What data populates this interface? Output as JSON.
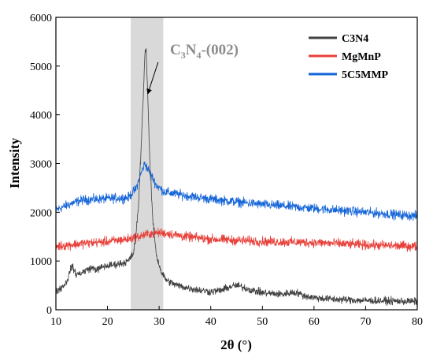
{
  "chart_data": {
    "type": "line",
    "xlabel": "2θ (°)",
    "ylabel": "Intensity",
    "xlim": [
      10,
      80
    ],
    "ylim": [
      0,
      6000
    ],
    "x_ticks": [
      10,
      20,
      30,
      40,
      50,
      60,
      70,
      80
    ],
    "y_ticks": [
      0,
      1000,
      2000,
      3000,
      4000,
      5000,
      6000
    ],
    "grid": false,
    "legend_position": "top-right",
    "shaded_band": {
      "x_range": [
        24.5,
        30.8
      ],
      "color": "#d9d9d9"
    },
    "annotation": {
      "text_parts": [
        "C",
        "3",
        "N",
        "4",
        "-(002)"
      ],
      "arrow_from": [
        29.8,
        5080
      ],
      "arrow_to": [
        27.8,
        4430
      ]
    },
    "series": [
      {
        "name": "C3N4",
        "color": "#404040",
        "noise": 55,
        "x": [
          10,
          11,
          12,
          12.5,
          13,
          13.5,
          14,
          15,
          16,
          17,
          18,
          19,
          20,
          21,
          22,
          23,
          24,
          25,
          25.5,
          26,
          26.5,
          27,
          27.3,
          27.5,
          27.8,
          28.2,
          28.8,
          29.5,
          30.5,
          31.5,
          33,
          35,
          38,
          40,
          42,
          44,
          45,
          46,
          48,
          50,
          52,
          54,
          55,
          56,
          57,
          58,
          60,
          62,
          65,
          70,
          75,
          80
        ],
        "y": [
          380,
          450,
          560,
          700,
          900,
          820,
          720,
          760,
          820,
          860,
          820,
          880,
          900,
          920,
          940,
          960,
          1000,
          1150,
          1500,
          2150,
          3300,
          4600,
          5380,
          5300,
          4400,
          3000,
          1800,
          1100,
          750,
          600,
          520,
          460,
          400,
          370,
          400,
          480,
          500,
          470,
          400,
          350,
          330,
          320,
          340,
          360,
          340,
          290,
          250,
          230,
          210,
          190,
          180,
          170
        ]
      },
      {
        "name": "MgMnP",
        "color": "#e8403a",
        "noise": 70,
        "x": [
          10,
          15,
          20,
          24,
          26,
          28,
          30,
          32,
          35,
          40,
          50,
          60,
          70,
          80
        ],
        "y": [
          1300,
          1360,
          1400,
          1450,
          1500,
          1560,
          1580,
          1560,
          1500,
          1450,
          1400,
          1380,
          1330,
          1300
        ]
      },
      {
        "name": "5C5MMP",
        "color": "#1565d8",
        "noise": 70,
        "x": [
          10,
          13,
          15,
          20,
          24,
          25.5,
          26.5,
          27.2,
          28,
          29.5,
          31,
          33,
          36,
          40,
          50,
          60,
          70,
          80
        ],
        "y": [
          2050,
          2180,
          2250,
          2280,
          2300,
          2480,
          2800,
          3000,
          2850,
          2550,
          2420,
          2380,
          2330,
          2270,
          2160,
          2080,
          2000,
          1920
        ]
      }
    ]
  }
}
